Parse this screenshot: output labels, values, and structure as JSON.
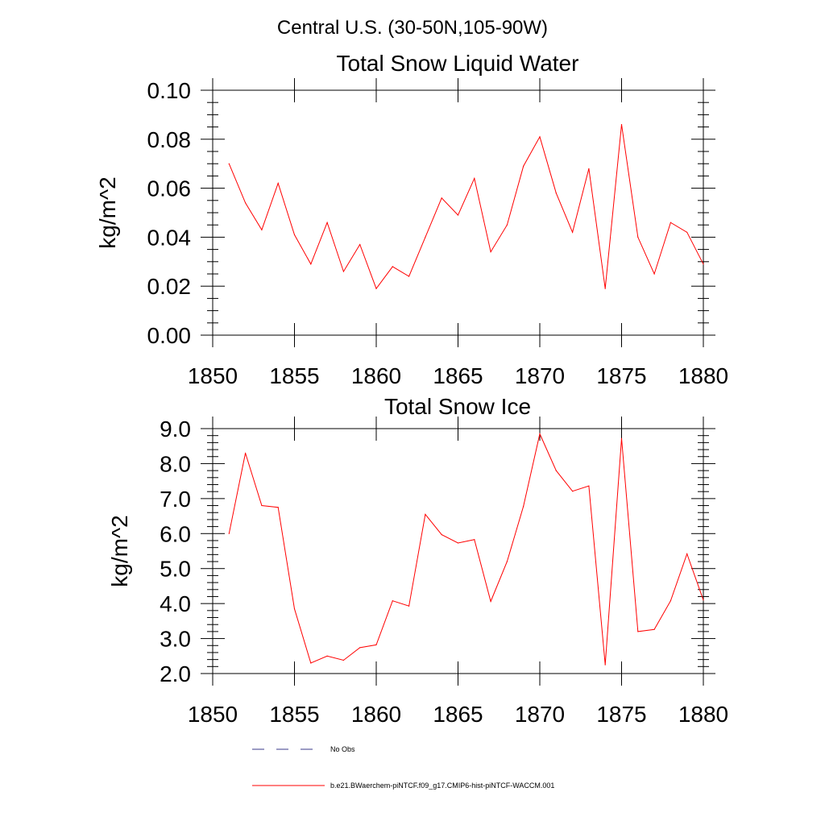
{
  "figure": {
    "title": "Central U.S. (30-50N,105-90W)"
  },
  "legend": {
    "items": [
      {
        "label": "No Obs",
        "color": "#3a3a8a",
        "dash": "dashed"
      },
      {
        "label": "b.e21.BWaerchem-piNTCF.f09_g17.CMIP6-hist-piNTCF-WACCM.001",
        "color": "#ff0000",
        "dash": "solid"
      }
    ]
  },
  "chart_data": [
    {
      "type": "line",
      "title": "Total Snow Liquid Water",
      "xlabel": "",
      "ylabel": "kg/m^2",
      "xlim": [
        1850,
        1880
      ],
      "ylim": [
        0.0,
        0.1
      ],
      "xticks": [
        "1850",
        "1855",
        "1860",
        "1865",
        "1870",
        "1875",
        "1880"
      ],
      "yticks": [
        "0.00",
        "0.02",
        "0.04",
        "0.06",
        "0.08",
        "0.10"
      ],
      "grid": false,
      "series": [
        {
          "name": "b.e21.BWaerchem-piNTCF.f09_g17.CMIP6-hist-piNTCF-WACCM.001",
          "color": "#ff0000",
          "x": [
            1851,
            1852,
            1853,
            1854,
            1855,
            1856,
            1857,
            1858,
            1859,
            1860,
            1861,
            1862,
            1863,
            1864,
            1865,
            1866,
            1867,
            1868,
            1869,
            1870,
            1871,
            1872,
            1873,
            1874,
            1875,
            1876,
            1877,
            1878,
            1879,
            1880
          ],
          "y": [
            0.07,
            0.054,
            0.043,
            0.062,
            0.041,
            0.029,
            0.046,
            0.026,
            0.037,
            0.019,
            0.028,
            0.024,
            0.04,
            0.056,
            0.049,
            0.064,
            0.034,
            0.045,
            0.069,
            0.081,
            0.058,
            0.042,
            0.068,
            0.019,
            0.086,
            0.04,
            0.025,
            0.046,
            0.042,
            0.029
          ]
        }
      ]
    },
    {
      "type": "line",
      "title": "Total Snow Ice",
      "xlabel": "",
      "ylabel": "kg/m^2",
      "xlim": [
        1850,
        1880
      ],
      "ylim": [
        2.0,
        9.0
      ],
      "xticks": [
        "1850",
        "1855",
        "1860",
        "1865",
        "1870",
        "1875",
        "1880"
      ],
      "yticks": [
        "2.0",
        "3.0",
        "4.0",
        "5.0",
        "6.0",
        "7.0",
        "8.0",
        "9.0"
      ],
      "grid": false,
      "series": [
        {
          "name": "b.e21.BWaerchem-piNTCF.f09_g17.CMIP6-hist-piNTCF-WACCM.001",
          "color": "#ff0000",
          "x": [
            1851,
            1852,
            1853,
            1854,
            1855,
            1856,
            1857,
            1858,
            1859,
            1860,
            1861,
            1862,
            1863,
            1864,
            1865,
            1866,
            1867,
            1868,
            1869,
            1870,
            1871,
            1872,
            1873,
            1874,
            1875,
            1876,
            1877,
            1878,
            1879,
            1880
          ],
          "y": [
            6.0,
            8.3,
            6.8,
            6.75,
            3.85,
            2.3,
            2.5,
            2.38,
            2.74,
            2.82,
            4.08,
            3.93,
            6.55,
            5.97,
            5.73,
            5.83,
            4.06,
            5.2,
            6.78,
            8.85,
            7.8,
            7.21,
            7.36,
            2.25,
            8.72,
            3.2,
            3.26,
            4.08,
            5.42,
            4.1
          ]
        }
      ]
    }
  ]
}
